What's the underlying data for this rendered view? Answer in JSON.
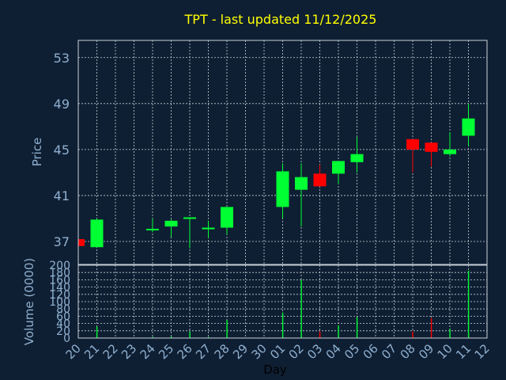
{
  "chart_data": [
    {
      "type": "candlestick",
      "title": "TPT - last updated 11/12/2025",
      "ylabel": "Price",
      "ylim": [
        35,
        54.5
      ],
      "yticks": [
        37,
        41,
        45,
        49,
        53
      ],
      "grid": true,
      "up_color": "#00ff33",
      "down_color": "#ff0000",
      "categories": [
        "20",
        "21",
        "22",
        "23",
        "24",
        "25",
        "26",
        "27",
        "28",
        "29",
        "30",
        "01",
        "02",
        "03",
        "04",
        "05",
        "06",
        "07",
        "08",
        "09",
        "10",
        "11",
        "12"
      ],
      "candles": [
        {
          "day": "20",
          "open": 37.2,
          "high": 37.2,
          "low": 36.6,
          "close": 36.6
        },
        {
          "day": "21",
          "open": 36.5,
          "high": 39.0,
          "low": 36.5,
          "close": 38.9
        },
        {
          "day": "24",
          "open": 38.0,
          "high": 39.0,
          "low": 37.8,
          "close": 38.1
        },
        {
          "day": "25",
          "open": 38.3,
          "high": 38.9,
          "low": 37.4,
          "close": 38.8
        },
        {
          "day": "26",
          "open": 39.0,
          "high": 39.1,
          "low": 36.4,
          "close": 39.1
        },
        {
          "day": "27",
          "open": 38.1,
          "high": 38.8,
          "low": 37.3,
          "close": 38.2
        },
        {
          "day": "28",
          "open": 38.2,
          "high": 40.0,
          "low": 37.6,
          "close": 40.0
        },
        {
          "day": "01",
          "open": 40.0,
          "high": 43.8,
          "low": 39.0,
          "close": 43.1
        },
        {
          "day": "02",
          "open": 41.5,
          "high": 43.8,
          "low": 38.3,
          "close": 42.6
        },
        {
          "day": "03",
          "open": 42.9,
          "high": 43.7,
          "low": 41.8,
          "close": 41.8
        },
        {
          "day": "04",
          "open": 42.9,
          "high": 44.0,
          "low": 42.0,
          "close": 44.0
        },
        {
          "day": "05",
          "open": 43.9,
          "high": 46.1,
          "low": 43.0,
          "close": 44.6
        },
        {
          "day": "08",
          "open": 45.9,
          "high": 45.9,
          "low": 43.0,
          "close": 45.0
        },
        {
          "day": "09",
          "open": 45.6,
          "high": 45.6,
          "low": 43.5,
          "close": 44.8
        },
        {
          "day": "10",
          "open": 44.6,
          "high": 46.5,
          "low": 44.4,
          "close": 45.0
        },
        {
          "day": "11",
          "open": 46.2,
          "high": 49.0,
          "low": 45.3,
          "close": 47.7
        }
      ]
    },
    {
      "type": "bar",
      "ylabel": "Volume (0000)",
      "xlabel": "Day",
      "ylim": [
        0,
        200
      ],
      "yticks": [
        0,
        20,
        40,
        60,
        80,
        100,
        120,
        140,
        160,
        180,
        200
      ],
      "categories": [
        "20",
        "21",
        "22",
        "23",
        "24",
        "25",
        "26",
        "27",
        "28",
        "29",
        "30",
        "01",
        "02",
        "03",
        "04",
        "05",
        "06",
        "07",
        "08",
        "09",
        "10",
        "11",
        "12"
      ],
      "values": [
        {
          "day": "21",
          "volume": 32,
          "color": "#00ff33"
        },
        {
          "day": "24",
          "volume": 3,
          "color": "#00ff33"
        },
        {
          "day": "25",
          "volume": 4,
          "color": "#00ff33"
        },
        {
          "day": "26",
          "volume": 18,
          "color": "#00ff33"
        },
        {
          "day": "27",
          "volume": 3,
          "color": "#00ff33"
        },
        {
          "day": "28",
          "volume": 50,
          "color": "#00ff33"
        },
        {
          "day": "01",
          "volume": 70,
          "color": "#00ff33"
        },
        {
          "day": "02",
          "volume": 160,
          "color": "#00ff33"
        },
        {
          "day": "03",
          "volume": 18,
          "color": "#ff0000"
        },
        {
          "day": "04",
          "volume": 35,
          "color": "#00ff33"
        },
        {
          "day": "05",
          "volume": 58,
          "color": "#00ff33"
        },
        {
          "day": "08",
          "volume": 18,
          "color": "#ff0000"
        },
        {
          "day": "09",
          "volume": 55,
          "color": "#ff0000"
        },
        {
          "day": "10",
          "volume": 25,
          "color": "#00ff33"
        },
        {
          "day": "11",
          "volume": 185,
          "color": "#00ff33"
        }
      ]
    }
  ]
}
